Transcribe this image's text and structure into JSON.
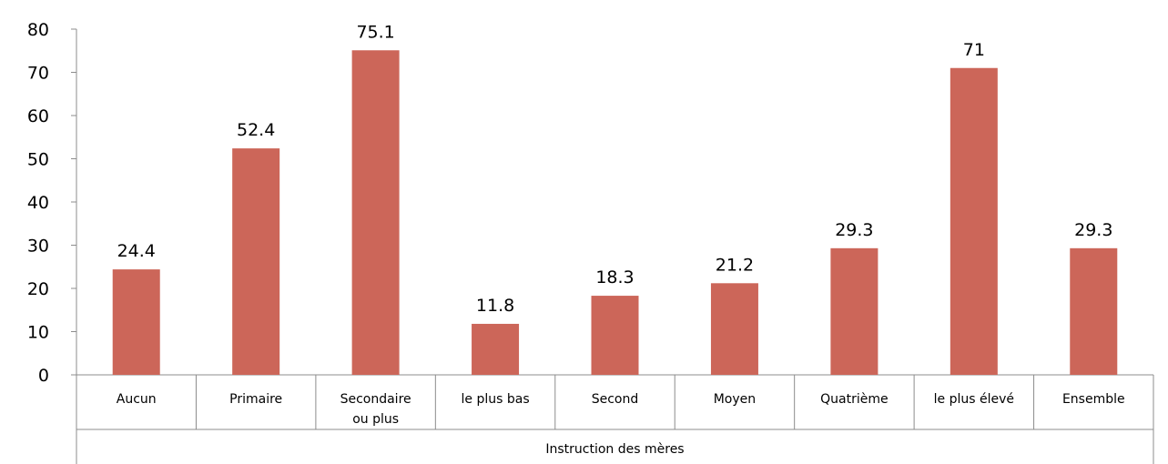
{
  "chart_data": {
    "type": "bar",
    "categories": [
      "Aucun",
      "Primaire",
      "Secondaire ou plus",
      "le plus bas",
      "Second",
      "Moyen",
      "Quatrième",
      "le plus élevé",
      "Ensemble"
    ],
    "category_lines": [
      [
        "Aucun"
      ],
      [
        "Primaire"
      ],
      [
        "Secondaire",
        "ou plus"
      ],
      [
        "le plus bas"
      ],
      [
        "Second"
      ],
      [
        "Moyen"
      ],
      [
        "Quatrième"
      ],
      [
        "le plus élevé"
      ],
      [
        "Ensemble"
      ]
    ],
    "values": [
      24.4,
      52.4,
      75.1,
      11.8,
      18.3,
      21.2,
      29.3,
      71,
      29.3
    ],
    "data_labels": [
      "24.4",
      "52.4",
      "75.1",
      "11.8",
      "18.3",
      "21.2",
      "29.3",
      "71",
      "29.3"
    ],
    "group_label": "Instruction des mères",
    "yticks": [
      0,
      10,
      20,
      30,
      40,
      50,
      60,
      70,
      80
    ],
    "ylim": [
      0,
      80
    ],
    "title": "",
    "xlabel": "",
    "ylabel": "",
    "bar_color": "#cc6659",
    "grid": false,
    "legend": "none"
  }
}
